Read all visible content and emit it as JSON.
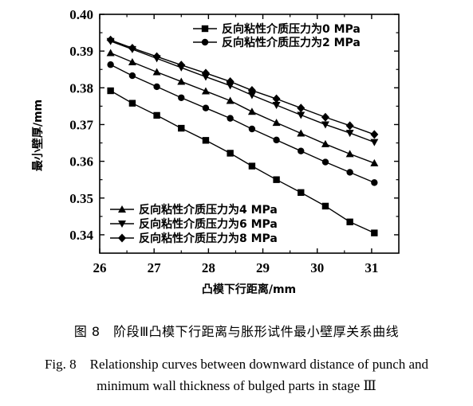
{
  "chart_data": {
    "type": "line",
    "xlabel": "凸模下行距离/mm",
    "ylabel": "最小壁厚/mm",
    "xlim": [
      26,
      31.5
    ],
    "ylim": [
      0.335,
      0.4
    ],
    "xticks": [
      "26",
      "27",
      "28",
      "29",
      "30",
      "31"
    ],
    "yticks": [
      "0.34",
      "0.35",
      "0.36",
      "0.37",
      "0.38",
      "0.39",
      "0.40"
    ],
    "grid": false,
    "legend_placement": [
      "top-right",
      "bottom-left"
    ],
    "x": [
      26.2,
      26.6,
      27.05,
      27.5,
      27.95,
      28.4,
      28.8,
      29.25,
      29.7,
      30.15,
      30.6,
      31.05
    ],
    "series": [
      {
        "name": "反向粘性介质压力为0 MPa",
        "marker": "square",
        "values": [
          0.3792,
          0.3758,
          0.3725,
          0.369,
          0.3657,
          0.3622,
          0.3587,
          0.355,
          0.3515,
          0.3478,
          0.3435,
          0.3405
        ]
      },
      {
        "name": "反向粘性介质压力为2 MPa",
        "marker": "circle",
        "values": [
          0.3863,
          0.3833,
          0.3803,
          0.3773,
          0.3745,
          0.3717,
          0.3688,
          0.3658,
          0.3628,
          0.3598,
          0.357,
          0.3542
        ]
      },
      {
        "name": "反向粘性介质压力为4 MPa",
        "marker": "triangle-up",
        "values": [
          0.3895,
          0.387,
          0.3843,
          0.3817,
          0.3791,
          0.3765,
          0.3735,
          0.3705,
          0.3676,
          0.3647,
          0.362,
          0.3595
        ]
      },
      {
        "name": "反向粘性介质压力为6 MPa",
        "marker": "triangle-down",
        "values": [
          0.3927,
          0.3905,
          0.388,
          0.3855,
          0.383,
          0.3806,
          0.378,
          0.3753,
          0.3726,
          0.37,
          0.3677,
          0.3652
        ]
      },
      {
        "name": "反向粘性介质压力为8 MPa",
        "marker": "diamond",
        "values": [
          0.393,
          0.3908,
          0.3885,
          0.3862,
          0.384,
          0.3817,
          0.3793,
          0.377,
          0.3745,
          0.372,
          0.3697,
          0.3673
        ]
      }
    ]
  },
  "caption": {
    "cn": "图 8　阶段Ⅲ凸模下行距离与胀形试件最小壁厚关系曲线",
    "en_line1": "Fig. 8　Relationship curves between downward distance of punch and",
    "en_line2": "minimum wall thickness of bulged parts in stage Ⅲ"
  }
}
